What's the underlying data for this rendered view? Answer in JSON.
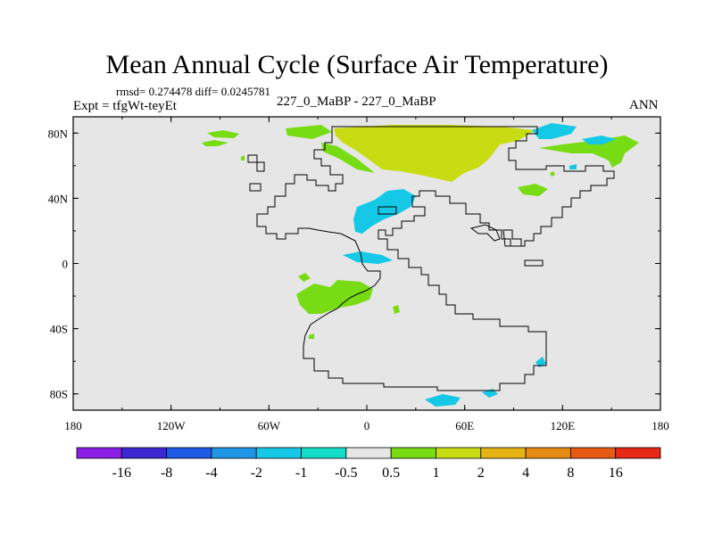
{
  "title": "Mean Annual Cycle (Surface Air Temperature)",
  "stats": "rmsd= 0.274478 diff= 0.0245781",
  "expt": "Expt = tfgWt-teyEt",
  "center_label": "227_0_MaBP - 227_0_MaBP",
  "season": "ANN",
  "x_ticks": [
    "180",
    "120W",
    "60W",
    "0",
    "60E",
    "120E",
    "180"
  ],
  "y_ticks": [
    "80N",
    "40N",
    "0",
    "40S",
    "80S"
  ],
  "colorbar": {
    "labels": [
      "-16",
      "-8",
      "-4",
      "-2",
      "-1",
      "-0.5",
      "0.5",
      "1",
      "2",
      "4",
      "8",
      "16"
    ],
    "colors": [
      "#8a1ee6",
      "#3c28d2",
      "#1e5ae6",
      "#1e96e6",
      "#14c8e6",
      "#14dcc8",
      "#e6e6e6",
      "#78dc14",
      "#c8dc14",
      "#e6b414",
      "#e68c14",
      "#e65a14",
      "#e62814"
    ]
  },
  "map_colors": {
    "background": "#e6e6e6",
    "positive_small": "#78dc14",
    "positive_mid": "#c8dc14",
    "negative_small": "#14c8e6"
  }
}
